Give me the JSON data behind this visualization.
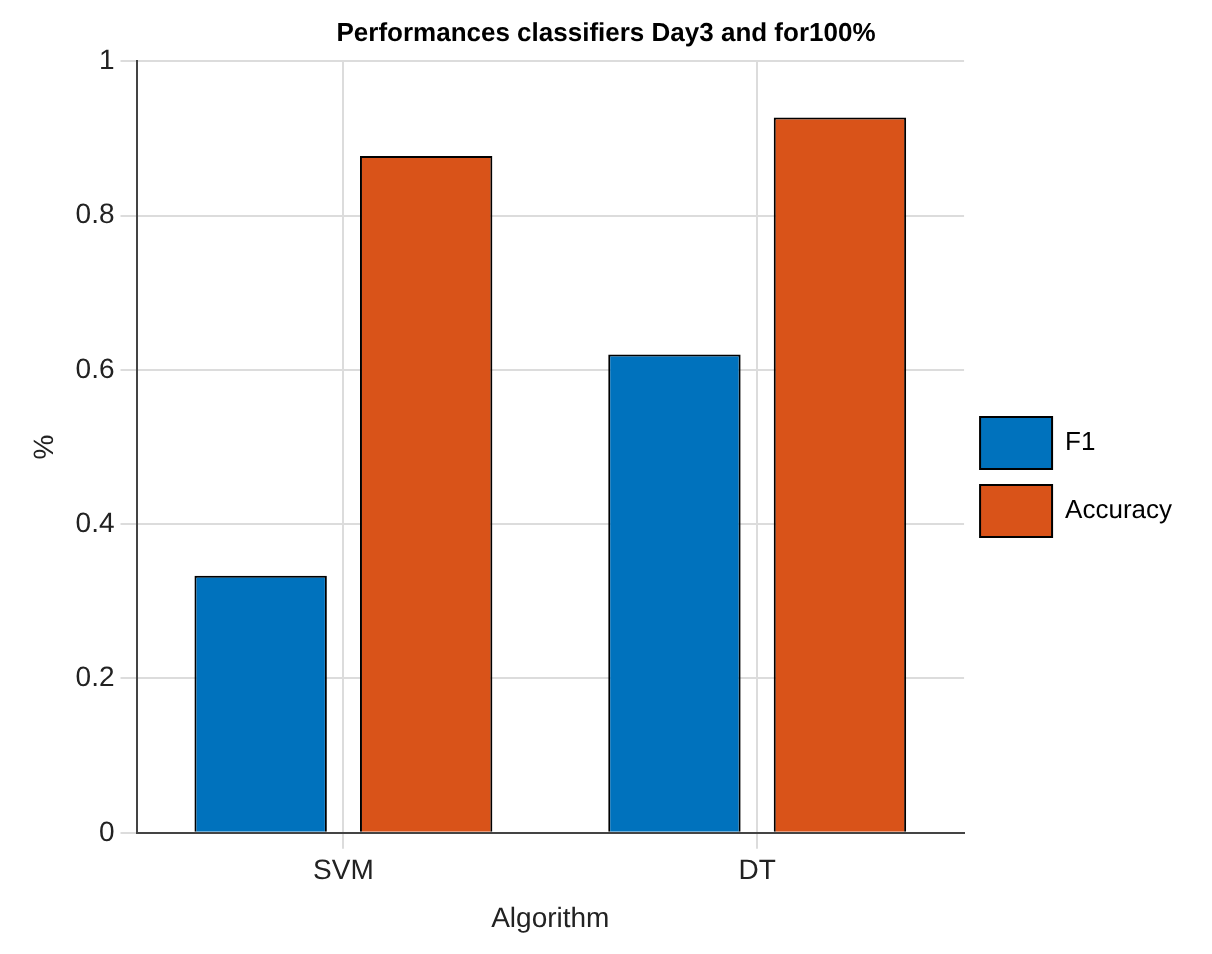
{
  "chart_data": {
    "type": "bar",
    "title": "Performances classifiers Day3 and for100%",
    "xlabel": "Algorithm",
    "ylabel": "%",
    "categories": [
      "SVM",
      "DT"
    ],
    "series": [
      {
        "name": "F1",
        "color": "#0072bd",
        "values": [
          0.333,
          0.62
        ]
      },
      {
        "name": "Accuracy",
        "color": "#d95319",
        "values": [
          0.877,
          0.927
        ]
      }
    ],
    "ylim": [
      0,
      1
    ],
    "yticks": [
      0,
      0.2,
      0.4,
      0.6,
      0.8,
      1
    ],
    "grid": true,
    "legend": "right"
  }
}
